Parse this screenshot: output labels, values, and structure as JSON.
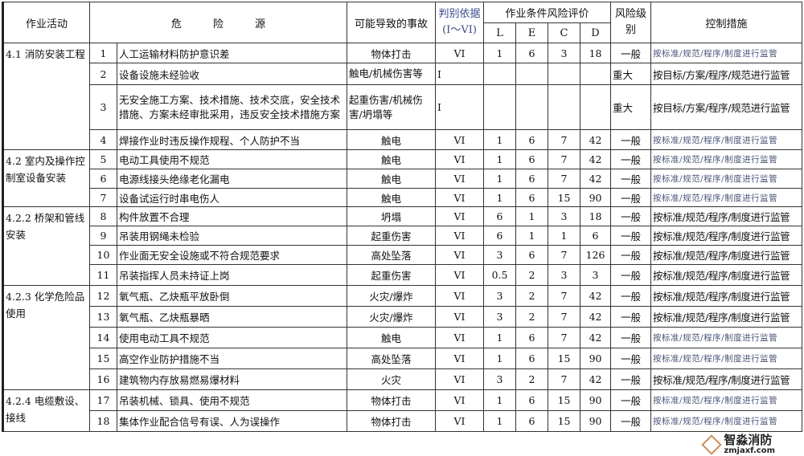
{
  "header": {
    "activity": "作业活动",
    "hazard": "危　　　险　　　源",
    "accident": "可能导致的事故",
    "judge_line1": "判别依据",
    "judge_line2": "(I～VI)",
    "evaluation": "作业条件风险评价",
    "L": "L",
    "E": "E",
    "C": "C",
    "D": "D",
    "level": "风险级别",
    "control": "控制措施"
  },
  "groups": [
    {
      "label": "4.1 消防安装工程",
      "rows": 4
    },
    {
      "label": "4.2 室内及操作控制室设备安装",
      "rows": 3
    },
    {
      "label": "4.2.2 桥架和管线安装",
      "rows": 4
    },
    {
      "label": "4.2.3 化学危险品使用",
      "rows": 5
    },
    {
      "label": "4.2.4 电缆敷设、接线",
      "rows": 2
    }
  ],
  "rows": [
    {
      "no": "1",
      "hazard": "人工运输材料防护意识差",
      "accident": "物体打击",
      "judge": "VI",
      "L": "1",
      "E": "6",
      "C": "3",
      "D": "18",
      "level": "一般",
      "control": "按标准/规范/程序/制度进行监管",
      "control_style": "small"
    },
    {
      "no": "2",
      "hazard": "设备设施未经验收",
      "accident": "触电/机械伤害等",
      "judge": "I",
      "L": "",
      "E": "",
      "C": "",
      "D": "",
      "level": "重大",
      "control": "按目标/方案/程序/规范进行监管",
      "control_style": "normal"
    },
    {
      "no": "3",
      "hazard": "无安全施工方案、技术措施、技术交底，安全技术措施、方案未经审批采用，违反安全技术措施方案",
      "accident": "起重伤害/机械伤害/坍塌等",
      "judge": "I",
      "L": "",
      "E": "",
      "C": "",
      "D": "",
      "level": "重大",
      "control": "按目标/方案/程序/规范进行监管",
      "control_style": "normal"
    },
    {
      "no": "4",
      "hazard": "焊接作业时违反操作规程、个人防护不当",
      "accident": "触电",
      "judge": "VI",
      "L": "1",
      "E": "6",
      "C": "7",
      "D": "42",
      "level": "一般",
      "control": "按标准/规范/程序/制度进行监管",
      "control_style": "small"
    },
    {
      "no": "5",
      "hazard": "电动工具使用不规范",
      "accident": "触电",
      "judge": "VI",
      "L": "1",
      "E": "6",
      "C": "7",
      "D": "42",
      "level": "一般",
      "control": "按标准/规范/程序/制度进行监管",
      "control_style": "small"
    },
    {
      "no": "6",
      "hazard": "电源线接头绝缘老化漏电",
      "accident": "触电",
      "judge": "VI",
      "L": "1",
      "E": "6",
      "C": "7",
      "D": "42",
      "level": "一般",
      "control": "按标准/规范/程序/制度进行监管",
      "control_style": "small"
    },
    {
      "no": "7",
      "hazard": "设备试运行时串电伤人",
      "accident": "触电",
      "judge": "VI",
      "L": "1",
      "E": "6",
      "C": "15",
      "D": "90",
      "level": "一般",
      "control": "按标准/规范/程序/制度进行监管",
      "control_style": "small"
    },
    {
      "no": "8",
      "hazard": "构件放置不合理",
      "accident": "坍塌",
      "judge": "VI",
      "L": "6",
      "E": "1",
      "C": "3",
      "D": "18",
      "level": "一般",
      "control": "按标准/规范/程序/制度进行监管",
      "control_style": "normal"
    },
    {
      "no": "9",
      "hazard": "吊装用钢绳未检验",
      "accident": "起重伤害",
      "judge": "VI",
      "L": "6",
      "E": "1",
      "C": "1",
      "D": "6",
      "level": "一般",
      "control": "按标准/规范/程序/制度进行监管",
      "control_style": "normal"
    },
    {
      "no": "10",
      "hazard": "作业面无安全设施或不符合规范要求",
      "accident": "高处坠落",
      "judge": "VI",
      "L": "3",
      "E": "6",
      "C": "7",
      "D": "126",
      "level": "一般",
      "control": "按标准/规范/程序/制度进行监管",
      "control_style": "normal"
    },
    {
      "no": "11",
      "hazard": "吊装指挥人员未持证上岗",
      "accident": "起重伤害",
      "judge": "VI",
      "L": "0.5",
      "E": "2",
      "C": "3",
      "D": "3",
      "level": "一般",
      "control": "按标准/规范/程序/制度进行监管",
      "control_style": "normal"
    },
    {
      "no": "12",
      "hazard": "氧气瓶、乙炔瓶平放卧倒",
      "accident": "火灾/爆炸",
      "judge": "VI",
      "L": "3",
      "E": "2",
      "C": "7",
      "D": "42",
      "level": "一般",
      "control": "按标准/规范/程序/制度进行监管",
      "control_style": "normal"
    },
    {
      "no": "13",
      "hazard": "氧气瓶、乙炔瓶暴晒",
      "accident": "火灾/爆炸",
      "judge": "VI",
      "L": "3",
      "E": "2",
      "C": "7",
      "D": "42",
      "level": "一般",
      "control": "按标准/规范/程序/制度进行监管",
      "control_style": "normal"
    },
    {
      "no": "14",
      "hazard": "使用电动工具不规范",
      "accident": "触电",
      "judge": "VI",
      "L": "1",
      "E": "6",
      "C": "7",
      "D": "42",
      "level": "一般",
      "control": "按标准/规范/程序/制度进行监管",
      "control_style": "small"
    },
    {
      "no": "15",
      "hazard": "高空作业防护措施不当",
      "accident": "高处坠落",
      "judge": "VI",
      "L": "1",
      "E": "6",
      "C": "15",
      "D": "90",
      "level": "一般",
      "control": "按标准/规范/程序/制度进行监管",
      "control_style": "small"
    },
    {
      "no": "16",
      "hazard": "建筑物内存放易燃易爆材料",
      "accident": "火灾",
      "judge": "VI",
      "L": "3",
      "E": "2",
      "C": "7",
      "D": "42",
      "level": "一般",
      "control": "按标准/规范/程序/制度进行监管",
      "control_style": "normal"
    },
    {
      "no": "17",
      "hazard": "吊装机械、锁具、使用不规范",
      "accident": "物体打击",
      "judge": "VI",
      "L": "1",
      "E": "6",
      "C": "15",
      "D": "90",
      "level": "一般",
      "control": "按标准/规范/程序/制度进行监管",
      "control_style": "small"
    },
    {
      "no": "18",
      "hazard": "集体作业配合信号有误、人为误操作",
      "accident": "物体打击",
      "judge": "VI",
      "L": "1",
      "E": "6",
      "C": "15",
      "D": "90",
      "level": "一般",
      "control": "按标准/规范/程序/制度进行监管",
      "control_style": "small"
    }
  ],
  "watermark": {
    "name": "智淼消防",
    "site": "zmjaxf.com"
  }
}
